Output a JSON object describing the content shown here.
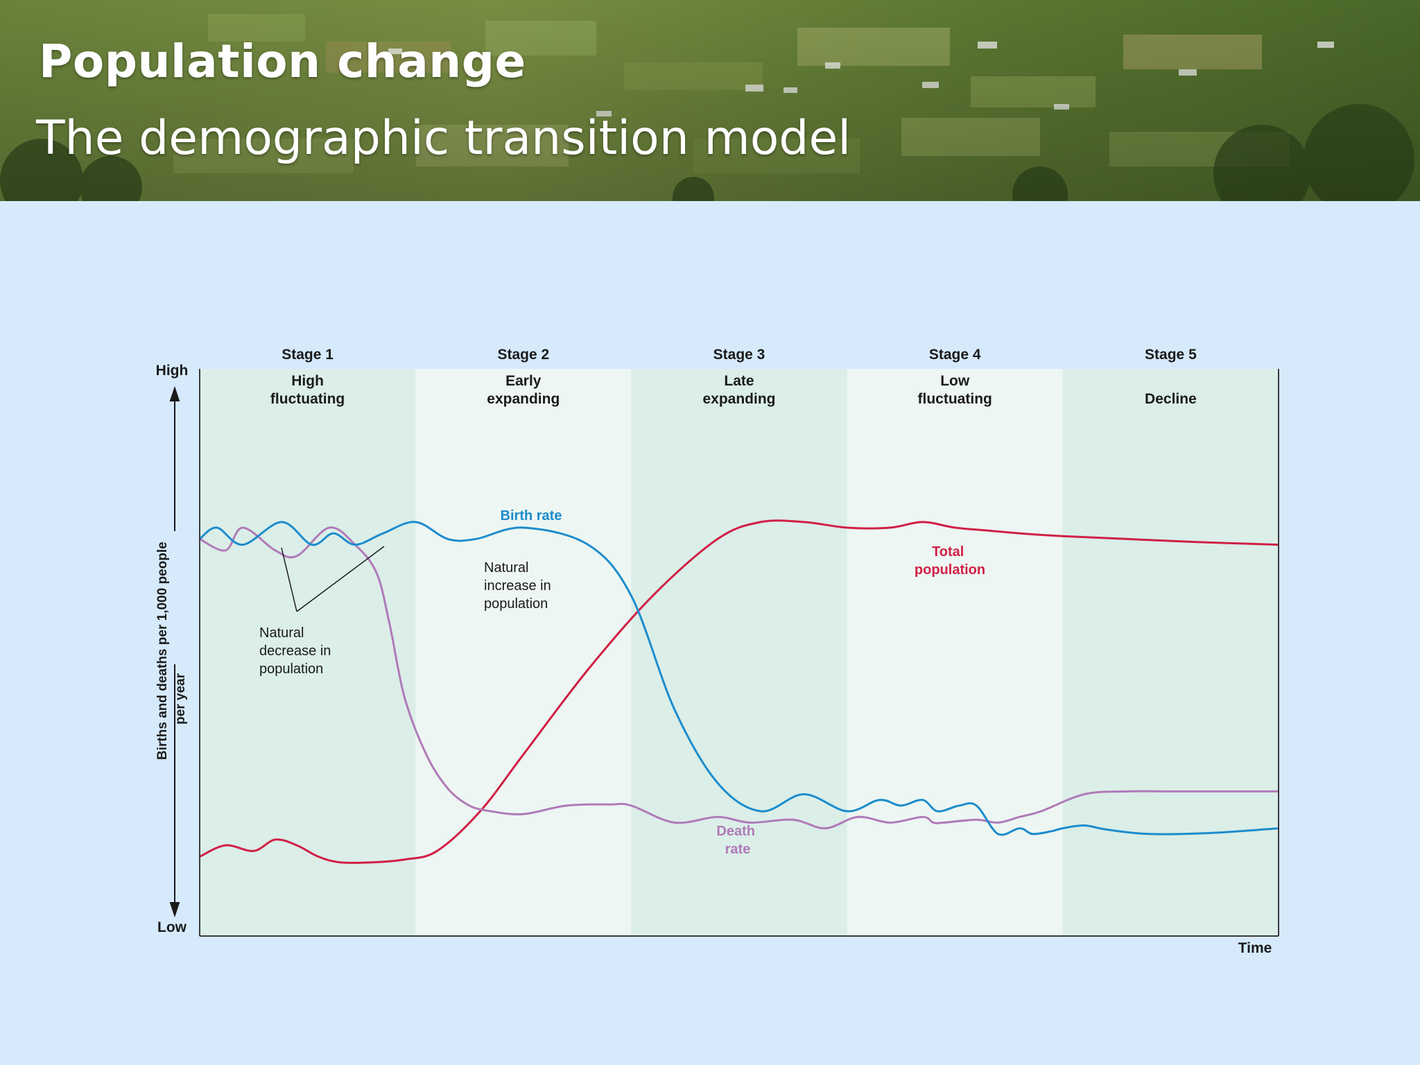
{
  "slide": {
    "title": "Population change",
    "subtitle": "The demographic transition model"
  },
  "colors": {
    "background": "#d6eafc",
    "birth_rate": "#1c8ccd",
    "death_rate": "#b07ab8",
    "total_population": "#d11f45",
    "stage_dark": "#dbeee8",
    "stage_light": "#edf6f2"
  },
  "chart_data": {
    "type": "line",
    "title": "",
    "xlabel": "Time",
    "ylabel": "Births and deaths per 1,000 people per year",
    "y_high_label": "High",
    "y_low_label": "Low",
    "xlim": [
      0,
      5
    ],
    "ylim": [
      0,
      100
    ],
    "grid": false,
    "stages": [
      {
        "number": "Stage 1",
        "name": "High fluctuating"
      },
      {
        "number": "Stage 2",
        "name": "Early expanding"
      },
      {
        "number": "Stage 3",
        "name": "Late expanding"
      },
      {
        "number": "Stage 4",
        "name": "Low fluctuating"
      },
      {
        "number": "Stage 5",
        "name": "Decline"
      }
    ],
    "series": [
      {
        "name": "Birth rate",
        "x": [
          0,
          0.08,
          0.2,
          0.38,
          0.52,
          0.62,
          0.72,
          0.85,
          1.0,
          1.15,
          1.28,
          1.5,
          1.8,
          2.0,
          2.2,
          2.4,
          2.6,
          2.8,
          3.0,
          3.15,
          3.25,
          3.35,
          3.42,
          3.52,
          3.6,
          3.7,
          3.8,
          3.86,
          3.95,
          4.0,
          4.1,
          4.2,
          4.4,
          4.7,
          5.0
        ],
        "values": [
          70,
          72,
          69,
          73,
          69,
          71,
          69,
          71,
          73,
          70,
          70,
          72,
          69,
          60,
          40,
          27,
          22,
          25,
          22,
          24,
          23,
          24,
          22,
          23,
          23,
          18,
          19,
          18,
          18.5,
          19,
          19.5,
          18.8,
          18,
          18.2,
          19
        ]
      },
      {
        "name": "Death rate",
        "x": [
          0,
          0.12,
          0.2,
          0.35,
          0.45,
          0.6,
          0.72,
          0.82,
          0.88,
          0.95,
          1.05,
          1.15,
          1.25,
          1.35,
          1.5,
          1.7,
          1.9,
          2.0,
          2.2,
          2.4,
          2.55,
          2.75,
          2.9,
          3.05,
          3.2,
          3.35,
          3.4,
          3.45,
          3.6,
          3.7,
          3.8,
          3.9,
          4.1,
          4.3,
          4.5,
          4.7,
          5.0
        ],
        "values": [
          70,
          68,
          72,
          68,
          67,
          72,
          69,
          64,
          55,
          42,
          32,
          26,
          23,
          22,
          21.5,
          23,
          23.2,
          23,
          20,
          21,
          20,
          20.5,
          19,
          21,
          20,
          21,
          20,
          20,
          20.5,
          20,
          21,
          22,
          25,
          25.5,
          25.5,
          25.5,
          25.5
        ]
      },
      {
        "name": "Total population",
        "x": [
          0,
          0.12,
          0.25,
          0.35,
          0.45,
          0.55,
          0.65,
          0.8,
          0.95,
          1.1,
          1.3,
          1.5,
          1.8,
          2.1,
          2.4,
          2.6,
          2.8,
          3.0,
          3.2,
          3.35,
          3.5,
          3.65,
          3.8,
          4.0,
          4.3,
          4.6,
          5.0
        ],
        "values": [
          14,
          16,
          15,
          17,
          16,
          14,
          13,
          13,
          13.5,
          15,
          22,
          32,
          47,
          60,
          70,
          73,
          73,
          72,
          72,
          73,
          72,
          71.5,
          71,
          70.5,
          70,
          69.5,
          69
        ]
      }
    ],
    "annotations": [
      {
        "text": "Birth rate",
        "series": "Birth rate"
      },
      {
        "text": "Death rate",
        "series": "Death rate"
      },
      {
        "text": "Total population",
        "series": "Total population"
      },
      {
        "text": "Natural increase in population"
      },
      {
        "text": "Natural decrease in population"
      }
    ]
  }
}
